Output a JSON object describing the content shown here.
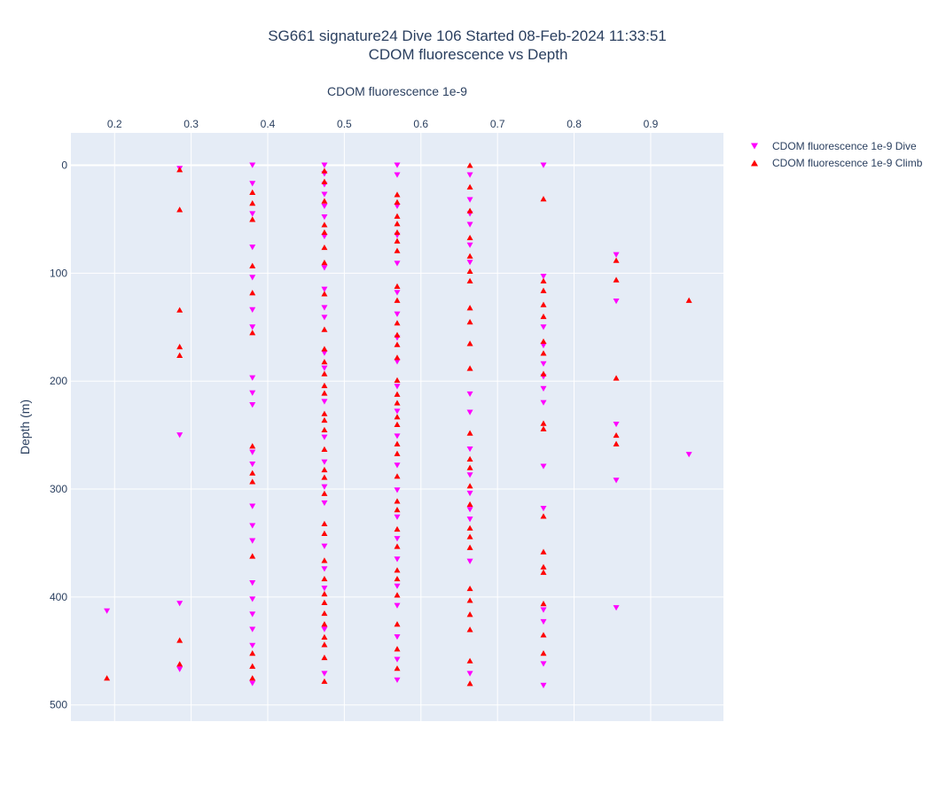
{
  "chart_data": {
    "type": "scatter",
    "title_line1": "SG661 signature24 Dive 106 Started 08-Feb-2024 11:33:51",
    "title_line2": "CDOM fluorescence vs Depth",
    "xlabel": "CDOM fluorescence 1e-9",
    "ylabel": "Depth (m)",
    "xaxis_side": "top",
    "yaxis_reversed": true,
    "xlim": [
      0.143,
      0.995
    ],
    "ylim": [
      -30,
      515
    ],
    "xticks": [
      0.2,
      0.3,
      0.4,
      0.5,
      0.6,
      0.7,
      0.8,
      0.9
    ],
    "yticks": [
      0,
      100,
      200,
      300,
      400,
      500
    ],
    "grid": true,
    "plot_background": "#e5ecf6",
    "legend_position": "top-right",
    "series": [
      {
        "name": "CDOM fluorescence 1e-9 Dive",
        "color": "#ff00ff",
        "marker": "triangle-down",
        "points": [
          [
            0.285,
            3
          ],
          [
            0.285,
            250
          ],
          [
            0.285,
            406
          ],
          [
            0.285,
            467
          ],
          [
            0.19,
            413
          ],
          [
            0.38,
            0
          ],
          [
            0.38,
            17
          ],
          [
            0.38,
            45
          ],
          [
            0.38,
            76
          ],
          [
            0.38,
            104
          ],
          [
            0.38,
            134
          ],
          [
            0.38,
            150
          ],
          [
            0.38,
            197
          ],
          [
            0.38,
            211
          ],
          [
            0.38,
            222
          ],
          [
            0.38,
            266
          ],
          [
            0.38,
            277
          ],
          [
            0.38,
            316
          ],
          [
            0.38,
            334
          ],
          [
            0.38,
            348
          ],
          [
            0.38,
            387
          ],
          [
            0.38,
            402
          ],
          [
            0.38,
            416
          ],
          [
            0.38,
            430
          ],
          [
            0.38,
            445
          ],
          [
            0.38,
            480
          ],
          [
            0.474,
            0
          ],
          [
            0.474,
            8
          ],
          [
            0.474,
            18
          ],
          [
            0.474,
            27
          ],
          [
            0.474,
            38
          ],
          [
            0.474,
            48
          ],
          [
            0.474,
            66
          ],
          [
            0.474,
            95
          ],
          [
            0.474,
            115
          ],
          [
            0.474,
            132
          ],
          [
            0.474,
            141
          ],
          [
            0.474,
            174
          ],
          [
            0.474,
            188
          ],
          [
            0.474,
            219
          ],
          [
            0.474,
            252
          ],
          [
            0.474,
            275
          ],
          [
            0.474,
            298
          ],
          [
            0.474,
            313
          ],
          [
            0.474,
            353
          ],
          [
            0.474,
            374
          ],
          [
            0.474,
            392
          ],
          [
            0.474,
            430
          ],
          [
            0.474,
            471
          ],
          [
            0.569,
            0
          ],
          [
            0.569,
            9
          ],
          [
            0.569,
            38
          ],
          [
            0.569,
            65
          ],
          [
            0.569,
            91
          ],
          [
            0.569,
            118
          ],
          [
            0.569,
            138
          ],
          [
            0.569,
            160
          ],
          [
            0.569,
            182
          ],
          [
            0.569,
            205
          ],
          [
            0.569,
            228
          ],
          [
            0.569,
            251
          ],
          [
            0.569,
            278
          ],
          [
            0.569,
            301
          ],
          [
            0.569,
            326
          ],
          [
            0.569,
            346
          ],
          [
            0.569,
            365
          ],
          [
            0.569,
            390
          ],
          [
            0.569,
            408
          ],
          [
            0.569,
            437
          ],
          [
            0.569,
            458
          ],
          [
            0.569,
            477
          ],
          [
            0.664,
            9
          ],
          [
            0.664,
            32
          ],
          [
            0.664,
            45
          ],
          [
            0.664,
            55
          ],
          [
            0.664,
            74
          ],
          [
            0.664,
            90
          ],
          [
            0.664,
            212
          ],
          [
            0.664,
            229
          ],
          [
            0.664,
            263
          ],
          [
            0.664,
            287
          ],
          [
            0.664,
            304
          ],
          [
            0.664,
            319
          ],
          [
            0.664,
            328
          ],
          [
            0.664,
            367
          ],
          [
            0.664,
            471
          ],
          [
            0.76,
            0
          ],
          [
            0.76,
            103
          ],
          [
            0.76,
            150
          ],
          [
            0.76,
            167
          ],
          [
            0.76,
            184
          ],
          [
            0.76,
            196
          ],
          [
            0.76,
            207
          ],
          [
            0.76,
            220
          ],
          [
            0.76,
            279
          ],
          [
            0.76,
            318
          ],
          [
            0.76,
            412
          ],
          [
            0.76,
            423
          ],
          [
            0.76,
            462
          ],
          [
            0.76,
            482
          ],
          [
            0.855,
            83
          ],
          [
            0.855,
            126
          ],
          [
            0.855,
            240
          ],
          [
            0.855,
            292
          ],
          [
            0.855,
            410
          ],
          [
            0.95,
            268
          ]
        ]
      },
      {
        "name": "CDOM fluorescence 1e-9 Climb",
        "color": "#ff0000",
        "marker": "triangle-up",
        "points": [
          [
            0.285,
            4
          ],
          [
            0.285,
            41
          ],
          [
            0.285,
            134
          ],
          [
            0.285,
            168
          ],
          [
            0.285,
            176
          ],
          [
            0.285,
            440
          ],
          [
            0.285,
            462
          ],
          [
            0.19,
            475
          ],
          [
            0.38,
            25
          ],
          [
            0.38,
            35
          ],
          [
            0.38,
            50
          ],
          [
            0.38,
            93
          ],
          [
            0.38,
            118
          ],
          [
            0.38,
            155
          ],
          [
            0.38,
            260
          ],
          [
            0.38,
            285
          ],
          [
            0.38,
            293
          ],
          [
            0.38,
            362
          ],
          [
            0.38,
            452
          ],
          [
            0.38,
            464
          ],
          [
            0.38,
            475
          ],
          [
            0.474,
            5
          ],
          [
            0.474,
            15
          ],
          [
            0.474,
            33
          ],
          [
            0.474,
            55
          ],
          [
            0.474,
            62
          ],
          [
            0.474,
            76
          ],
          [
            0.474,
            90
          ],
          [
            0.474,
            119
          ],
          [
            0.474,
            152
          ],
          [
            0.474,
            170
          ],
          [
            0.474,
            182
          ],
          [
            0.474,
            193
          ],
          [
            0.474,
            204
          ],
          [
            0.474,
            211
          ],
          [
            0.474,
            230
          ],
          [
            0.474,
            236
          ],
          [
            0.474,
            245
          ],
          [
            0.474,
            263
          ],
          [
            0.474,
            282
          ],
          [
            0.474,
            289
          ],
          [
            0.474,
            304
          ],
          [
            0.474,
            332
          ],
          [
            0.474,
            341
          ],
          [
            0.474,
            366
          ],
          [
            0.474,
            383
          ],
          [
            0.474,
            397
          ],
          [
            0.474,
            405
          ],
          [
            0.474,
            415
          ],
          [
            0.474,
            425
          ],
          [
            0.474,
            437
          ],
          [
            0.474,
            444
          ],
          [
            0.474,
            456
          ],
          [
            0.474,
            478
          ],
          [
            0.569,
            27
          ],
          [
            0.569,
            34
          ],
          [
            0.569,
            47
          ],
          [
            0.569,
            54
          ],
          [
            0.569,
            62
          ],
          [
            0.569,
            70
          ],
          [
            0.569,
            79
          ],
          [
            0.569,
            112
          ],
          [
            0.569,
            125
          ],
          [
            0.569,
            146
          ],
          [
            0.569,
            157
          ],
          [
            0.569,
            166
          ],
          [
            0.569,
            178
          ],
          [
            0.569,
            199
          ],
          [
            0.569,
            212
          ],
          [
            0.569,
            220
          ],
          [
            0.569,
            233
          ],
          [
            0.569,
            240
          ],
          [
            0.569,
            258
          ],
          [
            0.569,
            267
          ],
          [
            0.569,
            288
          ],
          [
            0.569,
            311
          ],
          [
            0.569,
            319
          ],
          [
            0.569,
            337
          ],
          [
            0.569,
            353
          ],
          [
            0.569,
            375
          ],
          [
            0.569,
            383
          ],
          [
            0.569,
            398
          ],
          [
            0.569,
            425
          ],
          [
            0.569,
            448
          ],
          [
            0.569,
            466
          ],
          [
            0.664,
            0
          ],
          [
            0.664,
            20
          ],
          [
            0.664,
            42
          ],
          [
            0.664,
            67
          ],
          [
            0.664,
            84
          ],
          [
            0.664,
            98
          ],
          [
            0.664,
            107
          ],
          [
            0.664,
            132
          ],
          [
            0.664,
            145
          ],
          [
            0.664,
            165
          ],
          [
            0.664,
            188
          ],
          [
            0.664,
            248
          ],
          [
            0.664,
            272
          ],
          [
            0.664,
            280
          ],
          [
            0.664,
            297
          ],
          [
            0.664,
            314
          ],
          [
            0.664,
            336
          ],
          [
            0.664,
            344
          ],
          [
            0.664,
            354
          ],
          [
            0.664,
            392
          ],
          [
            0.664,
            403
          ],
          [
            0.664,
            416
          ],
          [
            0.664,
            430
          ],
          [
            0.664,
            459
          ],
          [
            0.664,
            480
          ],
          [
            0.76,
            31
          ],
          [
            0.76,
            107
          ],
          [
            0.76,
            116
          ],
          [
            0.76,
            129
          ],
          [
            0.76,
            140
          ],
          [
            0.76,
            163
          ],
          [
            0.76,
            174
          ],
          [
            0.76,
            193
          ],
          [
            0.76,
            239
          ],
          [
            0.76,
            244
          ],
          [
            0.76,
            325
          ],
          [
            0.76,
            358
          ],
          [
            0.76,
            372
          ],
          [
            0.76,
            377
          ],
          [
            0.76,
            406
          ],
          [
            0.76,
            435
          ],
          [
            0.76,
            452
          ],
          [
            0.855,
            88
          ],
          [
            0.855,
            106
          ],
          [
            0.855,
            197
          ],
          [
            0.855,
            250
          ],
          [
            0.855,
            258
          ],
          [
            0.95,
            125
          ]
        ]
      }
    ]
  }
}
